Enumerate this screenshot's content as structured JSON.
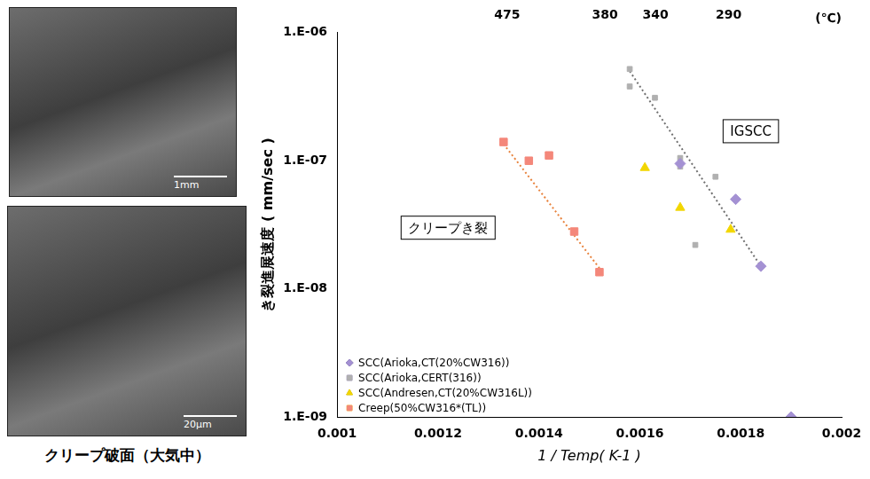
{
  "chart_data": {
    "type": "scatter",
    "xlabel": "1 / Temp( K-1 )",
    "ylabel": "き裂進展速度 ( mm/sec )",
    "log": "y",
    "grid": false,
    "legend": "lower left",
    "xlim": [
      0.001,
      0.002
    ],
    "xticks": [
      0.001,
      0.0012,
      0.0014,
      0.0016,
      0.0018,
      0.002
    ],
    "ylim": [
      1e-09,
      1e-06
    ],
    "yticks": [
      {
        "value": 1e-09,
        "label": "1.E-09"
      },
      {
        "value": 1e-08,
        "label": "1.E-08"
      },
      {
        "value": 1e-07,
        "label": "1.E-07"
      },
      {
        "value": 1e-06,
        "label": "1.E-06"
      }
    ],
    "x2label": "(℃)",
    "x2ticks": [
      {
        "value": 0.001337,
        "label": "475"
      },
      {
        "value": 0.001531,
        "label": "380"
      },
      {
        "value": 0.001631,
        "label": "340"
      },
      {
        "value": 0.001776,
        "label": "290"
      }
    ],
    "series": [
      {
        "name": "SCC(Arioka,CT(20%CW316))",
        "color": "#a491d3",
        "marker": "diamond",
        "x": [
          0.00168,
          0.00179,
          0.00184,
          0.0019
        ],
        "values": [
          9.5e-08,
          5e-08,
          1.5e-08,
          1e-09
        ]
      },
      {
        "name": "SCC(Arioka,CERT(316))",
        "color": "#b0b0b0",
        "marker": "square",
        "x": [
          0.00158,
          0.00158,
          0.00163,
          0.00168,
          0.00168,
          0.00171,
          0.00175
        ],
        "values": [
          5.2e-07,
          3.8e-07,
          3.1e-07,
          1.05e-07,
          9e-08,
          2.2e-08,
          7.5e-08
        ]
      },
      {
        "name": "SCC(Andresen,CT(20%CW316L))",
        "color": "#f2d600",
        "marker": "triangle",
        "x": [
          0.00161,
          0.00168,
          0.00178
        ],
        "values": [
          8.8e-08,
          4.3e-08,
          2.9e-08
        ]
      },
      {
        "name": "Creep(50%CW316*(TL))",
        "color": "#f4877a",
        "marker": "square",
        "x": [
          0.00133,
          0.00138,
          0.00142,
          0.00147,
          0.00152
        ],
        "values": [
          1.4e-07,
          1e-07,
          1.1e-07,
          2.8e-08,
          1.35e-08
        ]
      }
    ],
    "trend_lines": [
      {
        "color": "#e8823c",
        "line_style": "dotted",
        "x": [
          0.00133,
          0.00152
        ],
        "values": [
          1.35e-07,
          1.45e-08
        ]
      },
      {
        "color": "#707070",
        "line_style": "dotted",
        "x": [
          0.00158,
          0.00184
        ],
        "values": [
          5e-07,
          1.5e-08
        ]
      }
    ],
    "annotations": [
      {
        "text": "IGSCC",
        "x": 0.00182,
        "y": 1.7e-07
      },
      {
        "text": "クリープき裂",
        "x": 0.00122,
        "y": 3e-08
      }
    ]
  },
  "images": [
    {
      "scale_bar": "1mm"
    },
    {
      "scale_bar": "20μm"
    }
  ],
  "caption": "クリープ破面（大気中）"
}
